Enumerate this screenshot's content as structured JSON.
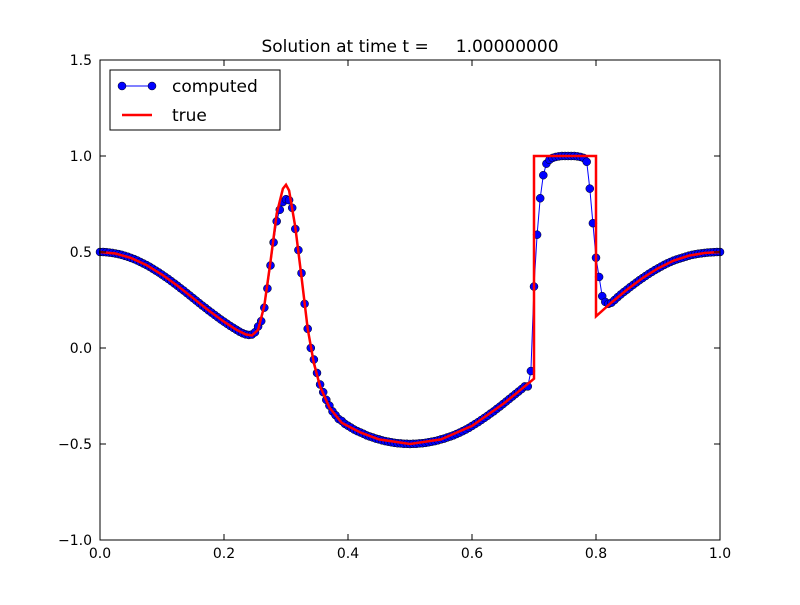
{
  "chart_data": {
    "type": "line",
    "title": "Solution at time t =     1.00000000",
    "xlabel": "",
    "ylabel": "",
    "xlim": [
      0.0,
      1.0
    ],
    "ylim": [
      -1.0,
      1.5
    ],
    "x_ticks": [
      "0.0",
      "0.2",
      "0.4",
      "0.6",
      "0.8",
      "1.0"
    ],
    "y_ticks": [
      "−1.0",
      "−0.5",
      "0.0",
      "0.5",
      "1.0",
      "1.5"
    ],
    "x_tick_values": [
      0.0,
      0.2,
      0.4,
      0.6,
      0.8,
      1.0
    ],
    "y_tick_values": [
      -1.0,
      -0.5,
      0.0,
      0.5,
      1.0,
      1.5
    ],
    "grid": false,
    "legend": {
      "position": "top-left"
    },
    "series": [
      {
        "name": "computed",
        "style": "line-marker",
        "color": "#0000ff",
        "values": [
          [
            0.0,
            0.5
          ],
          [
            0.005,
            0.5
          ],
          [
            0.01,
            0.499
          ],
          [
            0.015,
            0.497
          ],
          [
            0.02,
            0.495
          ],
          [
            0.025,
            0.492
          ],
          [
            0.03,
            0.489
          ],
          [
            0.035,
            0.485
          ],
          [
            0.04,
            0.48
          ],
          [
            0.045,
            0.475
          ],
          [
            0.05,
            0.469
          ],
          [
            0.055,
            0.463
          ],
          [
            0.06,
            0.456
          ],
          [
            0.065,
            0.448
          ],
          [
            0.07,
            0.44
          ],
          [
            0.075,
            0.432
          ],
          [
            0.08,
            0.423
          ],
          [
            0.085,
            0.413
          ],
          [
            0.09,
            0.403
          ],
          [
            0.095,
            0.393
          ],
          [
            0.1,
            0.382
          ],
          [
            0.105,
            0.371
          ],
          [
            0.11,
            0.36
          ],
          [
            0.115,
            0.348
          ],
          [
            0.12,
            0.336
          ],
          [
            0.125,
            0.324
          ],
          [
            0.13,
            0.311
          ],
          [
            0.135,
            0.299
          ],
          [
            0.14,
            0.286
          ],
          [
            0.145,
            0.273
          ],
          [
            0.15,
            0.26
          ],
          [
            0.155,
            0.247
          ],
          [
            0.16,
            0.234
          ],
          [
            0.165,
            0.221
          ],
          [
            0.17,
            0.209
          ],
          [
            0.175,
            0.196
          ],
          [
            0.18,
            0.184
          ],
          [
            0.185,
            0.172
          ],
          [
            0.19,
            0.16
          ],
          [
            0.195,
            0.148
          ],
          [
            0.2,
            0.137
          ],
          [
            0.205,
            0.126
          ],
          [
            0.21,
            0.115
          ],
          [
            0.215,
            0.105
          ],
          [
            0.22,
            0.095
          ],
          [
            0.225,
            0.085
          ],
          [
            0.23,
            0.077
          ],
          [
            0.235,
            0.071
          ],
          [
            0.24,
            0.068
          ],
          [
            0.245,
            0.07
          ],
          [
            0.25,
            0.082
          ],
          [
            0.255,
            0.112
          ],
          [
            0.26,
            0.14
          ],
          [
            0.265,
            0.21
          ],
          [
            0.27,
            0.31
          ],
          [
            0.275,
            0.43
          ],
          [
            0.28,
            0.55
          ],
          [
            0.285,
            0.66
          ],
          [
            0.29,
            0.72
          ],
          [
            0.295,
            0.76
          ],
          [
            0.3,
            0.775
          ],
          [
            0.305,
            0.77
          ],
          [
            0.31,
            0.73
          ],
          [
            0.315,
            0.62
          ],
          [
            0.32,
            0.51
          ],
          [
            0.325,
            0.39
          ],
          [
            0.33,
            0.23
          ],
          [
            0.335,
            0.1
          ],
          [
            0.34,
            0.0
          ],
          [
            0.345,
            -0.06
          ],
          [
            0.35,
            -0.13
          ],
          [
            0.355,
            -0.19
          ],
          [
            0.36,
            -0.23
          ],
          [
            0.365,
            -0.27
          ],
          [
            0.37,
            -0.3
          ],
          [
            0.375,
            -0.33
          ],
          [
            0.38,
            -0.35
          ],
          [
            0.385,
            -0.37
          ],
          [
            0.39,
            -0.38
          ],
          [
            0.395,
            -0.395
          ],
          [
            0.4,
            -0.405
          ],
          [
            0.405,
            -0.415
          ],
          [
            0.41,
            -0.425
          ],
          [
            0.415,
            -0.433
          ],
          [
            0.42,
            -0.44
          ],
          [
            0.425,
            -0.447
          ],
          [
            0.43,
            -0.455
          ],
          [
            0.435,
            -0.461
          ],
          [
            0.44,
            -0.466
          ],
          [
            0.445,
            -0.472
          ],
          [
            0.45,
            -0.476
          ],
          [
            0.455,
            -0.481
          ],
          [
            0.46,
            -0.485
          ],
          [
            0.465,
            -0.488
          ],
          [
            0.47,
            -0.491
          ],
          [
            0.475,
            -0.494
          ],
          [
            0.48,
            -0.496
          ],
          [
            0.485,
            -0.497
          ],
          [
            0.49,
            -0.499
          ],
          [
            0.495,
            -0.499
          ],
          [
            0.5,
            -0.5
          ],
          [
            0.505,
            -0.499
          ],
          [
            0.51,
            -0.499
          ],
          [
            0.515,
            -0.497
          ],
          [
            0.52,
            -0.496
          ],
          [
            0.525,
            -0.494
          ],
          [
            0.53,
            -0.491
          ],
          [
            0.535,
            -0.488
          ],
          [
            0.54,
            -0.485
          ],
          [
            0.545,
            -0.481
          ],
          [
            0.55,
            -0.476
          ],
          [
            0.555,
            -0.472
          ],
          [
            0.56,
            -0.466
          ],
          [
            0.565,
            -0.461
          ],
          [
            0.57,
            -0.455
          ],
          [
            0.575,
            -0.448
          ],
          [
            0.58,
            -0.441
          ],
          [
            0.585,
            -0.433
          ],
          [
            0.59,
            -0.425
          ],
          [
            0.595,
            -0.416
          ],
          [
            0.6,
            -0.406
          ],
          [
            0.605,
            -0.396
          ],
          [
            0.61,
            -0.386
          ],
          [
            0.615,
            -0.375
          ],
          [
            0.62,
            -0.364
          ],
          [
            0.625,
            -0.353
          ],
          [
            0.63,
            -0.341
          ],
          [
            0.635,
            -0.33
          ],
          [
            0.64,
            -0.317
          ],
          [
            0.645,
            -0.305
          ],
          [
            0.65,
            -0.292
          ],
          [
            0.655,
            -0.279
          ],
          [
            0.66,
            -0.266
          ],
          [
            0.665,
            -0.253
          ],
          [
            0.67,
            -0.24
          ],
          [
            0.675,
            -0.227
          ],
          [
            0.68,
            -0.214
          ],
          [
            0.685,
            -0.2
          ],
          [
            0.69,
            -0.2
          ],
          [
            0.695,
            -0.12
          ],
          [
            0.7,
            0.32
          ],
          [
            0.705,
            0.59
          ],
          [
            0.71,
            0.78
          ],
          [
            0.715,
            0.9
          ],
          [
            0.72,
            0.96
          ],
          [
            0.725,
            0.98
          ],
          [
            0.73,
            0.99
          ],
          [
            0.735,
            0.995
          ],
          [
            0.74,
            0.998
          ],
          [
            0.745,
            1.0
          ],
          [
            0.75,
            1.0
          ],
          [
            0.755,
            1.0
          ],
          [
            0.76,
            1.0
          ],
          [
            0.765,
            1.0
          ],
          [
            0.77,
            0.998
          ],
          [
            0.775,
            0.995
          ],
          [
            0.78,
            0.99
          ],
          [
            0.785,
            0.97
          ],
          [
            0.79,
            0.83
          ],
          [
            0.795,
            0.65
          ],
          [
            0.8,
            0.47
          ],
          [
            0.805,
            0.37
          ],
          [
            0.81,
            0.27
          ],
          [
            0.815,
            0.24
          ],
          [
            0.82,
            0.23
          ],
          [
            0.825,
            0.236
          ],
          [
            0.83,
            0.25
          ],
          [
            0.835,
            0.265
          ],
          [
            0.84,
            0.279
          ],
          [
            0.845,
            0.292
          ],
          [
            0.85,
            0.304
          ],
          [
            0.855,
            0.317
          ],
          [
            0.86,
            0.329
          ],
          [
            0.865,
            0.341
          ],
          [
            0.87,
            0.353
          ],
          [
            0.875,
            0.364
          ],
          [
            0.88,
            0.375
          ],
          [
            0.885,
            0.386
          ],
          [
            0.89,
            0.396
          ],
          [
            0.895,
            0.406
          ],
          [
            0.9,
            0.415
          ],
          [
            0.905,
            0.424
          ],
          [
            0.91,
            0.433
          ],
          [
            0.915,
            0.441
          ],
          [
            0.92,
            0.448
          ],
          [
            0.925,
            0.455
          ],
          [
            0.93,
            0.461
          ],
          [
            0.935,
            0.466
          ],
          [
            0.94,
            0.471
          ],
          [
            0.945,
            0.476
          ],
          [
            0.95,
            0.481
          ],
          [
            0.955,
            0.485
          ],
          [
            0.96,
            0.488
          ],
          [
            0.965,
            0.491
          ],
          [
            0.97,
            0.493
          ],
          [
            0.975,
            0.495
          ],
          [
            0.98,
            0.497
          ],
          [
            0.985,
            0.498
          ],
          [
            0.99,
            0.499
          ],
          [
            0.995,
            0.5
          ],
          [
            1.0,
            0.5
          ]
        ]
      },
      {
        "name": "true",
        "style": "line",
        "color": "#ff0000",
        "values": [
          [
            0.0,
            0.5
          ],
          [
            0.025,
            0.492
          ],
          [
            0.05,
            0.469
          ],
          [
            0.075,
            0.432
          ],
          [
            0.1,
            0.382
          ],
          [
            0.125,
            0.324
          ],
          [
            0.15,
            0.26
          ],
          [
            0.175,
            0.196
          ],
          [
            0.2,
            0.137
          ],
          [
            0.22,
            0.095
          ],
          [
            0.235,
            0.071
          ],
          [
            0.245,
            0.065
          ],
          [
            0.255,
            0.095
          ],
          [
            0.265,
            0.22
          ],
          [
            0.275,
            0.45
          ],
          [
            0.285,
            0.7
          ],
          [
            0.295,
            0.83
          ],
          [
            0.3,
            0.85
          ],
          [
            0.305,
            0.82
          ],
          [
            0.315,
            0.63
          ],
          [
            0.325,
            0.37
          ],
          [
            0.335,
            0.1
          ],
          [
            0.345,
            -0.08
          ],
          [
            0.355,
            -0.2
          ],
          [
            0.37,
            -0.31
          ],
          [
            0.39,
            -0.39
          ],
          [
            0.42,
            -0.44
          ],
          [
            0.45,
            -0.476
          ],
          [
            0.5,
            -0.5
          ],
          [
            0.55,
            -0.476
          ],
          [
            0.6,
            -0.406
          ],
          [
            0.65,
            -0.292
          ],
          [
            0.675,
            -0.227
          ],
          [
            0.7,
            -0.16
          ],
          [
            0.7,
            1.0
          ],
          [
            0.8,
            1.0
          ],
          [
            0.8,
            0.165
          ],
          [
            0.825,
            0.237
          ],
          [
            0.85,
            0.304
          ],
          [
            0.875,
            0.364
          ],
          [
            0.9,
            0.415
          ],
          [
            0.925,
            0.455
          ],
          [
            0.95,
            0.481
          ],
          [
            0.975,
            0.495
          ],
          [
            1.0,
            0.5
          ]
        ]
      }
    ]
  }
}
